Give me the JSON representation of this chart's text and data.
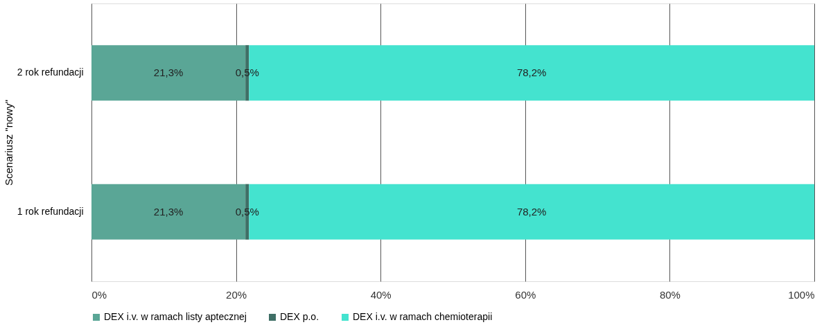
{
  "chart_data": {
    "type": "bar",
    "orientation": "horizontal",
    "stacked": true,
    "ylabel": "Scenariusz \"nowy\"",
    "categories": [
      "2 rok refundacji",
      "1 rok refundacji"
    ],
    "series": [
      {
        "name": "DEX i.v. w ramach listy aptecznej",
        "color": "#5aa696",
        "values": [
          21.3,
          21.3
        ],
        "value_labels": [
          "21,3%",
          "21,3%"
        ]
      },
      {
        "name": "DEX p.o.",
        "color": "#3f6f66",
        "values": [
          0.5,
          0.5
        ],
        "value_labels": [
          "0,5%",
          "0,5%"
        ]
      },
      {
        "name": "DEX i.v. w ramach chemioterapii",
        "color": "#44e3cf",
        "values": [
          78.2,
          78.2
        ],
        "value_labels": [
          "78,2%",
          "78,2%"
        ]
      }
    ],
    "xlim": [
      0,
      100
    ],
    "xticks": [
      {
        "value": 0,
        "label": "0%"
      },
      {
        "value": 20,
        "label": "20%"
      },
      {
        "value": 40,
        "label": "40%"
      },
      {
        "value": 60,
        "label": "60%"
      },
      {
        "value": 80,
        "label": "80%"
      },
      {
        "value": 100,
        "label": "100%"
      }
    ],
    "grid": "x",
    "legend": "bottom"
  }
}
